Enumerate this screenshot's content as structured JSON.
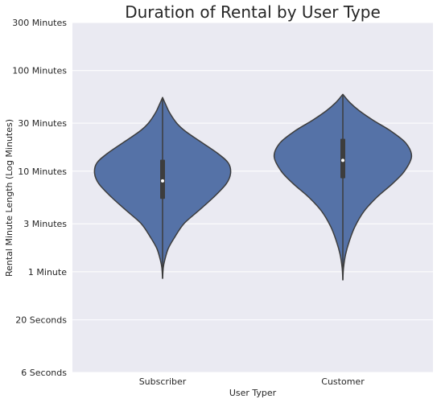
{
  "chart_data": {
    "type": "violin",
    "title": "Duration of Rental by User Type",
    "xlabel": "User Typer",
    "ylabel": "Rental Minute Length (Log Minutes)",
    "y_scale": "log",
    "y_unit": "minutes",
    "ylim": [
      0.1,
      300
    ],
    "yticks": [
      {
        "value": 0.1,
        "label": "6 Seconds"
      },
      {
        "value": 0.333,
        "label": "20 Seconds"
      },
      {
        "value": 1,
        "label": "1 Minute"
      },
      {
        "value": 3,
        "label": "3 Minutes"
      },
      {
        "value": 10,
        "label": "10 Minutes"
      },
      {
        "value": 30,
        "label": "30 Minutes"
      },
      {
        "value": 100,
        "label": "100 Minutes"
      },
      {
        "value": 300,
        "label": "300 Minutes"
      }
    ],
    "categories": [
      "Subscriber",
      "Customer"
    ],
    "grid": true,
    "colors": {
      "violin": "#5572a7",
      "edge": "#3d3d3d",
      "background": "#eaeaf2",
      "grid": "#ffffff",
      "box": "#3d3d3d",
      "median": "#ffffff"
    },
    "series": [
      {
        "category": "Subscriber",
        "min": 0.86,
        "q1": 5.3,
        "median": 8.0,
        "q3": 13.0,
        "max": 54,
        "density": [
          [
            0.86,
            0.0
          ],
          [
            1.1,
            0.01
          ],
          [
            1.3,
            0.03
          ],
          [
            1.7,
            0.08
          ],
          [
            2.2,
            0.17
          ],
          [
            3.0,
            0.3
          ],
          [
            4.0,
            0.5
          ],
          [
            5.5,
            0.72
          ],
          [
            7.5,
            0.9
          ],
          [
            9.5,
            0.96
          ],
          [
            12,
            0.93
          ],
          [
            15,
            0.78
          ],
          [
            20,
            0.52
          ],
          [
            25,
            0.32
          ],
          [
            30,
            0.2
          ],
          [
            38,
            0.1
          ],
          [
            45,
            0.05
          ],
          [
            54,
            0.0
          ]
        ]
      },
      {
        "category": "Customer",
        "min": 0.83,
        "q1": 8.5,
        "median": 12.8,
        "q3": 21.0,
        "max": 58,
        "density": [
          [
            0.83,
            0.0
          ],
          [
            1.1,
            0.01
          ],
          [
            1.5,
            0.04
          ],
          [
            2.0,
            0.09
          ],
          [
            2.8,
            0.17
          ],
          [
            4.0,
            0.3
          ],
          [
            5.5,
            0.48
          ],
          [
            7.5,
            0.7
          ],
          [
            10,
            0.87
          ],
          [
            14,
            0.97
          ],
          [
            19,
            0.89
          ],
          [
            25,
            0.68
          ],
          [
            32,
            0.43
          ],
          [
            40,
            0.23
          ],
          [
            48,
            0.1
          ],
          [
            58,
            0.0
          ]
        ]
      }
    ]
  }
}
